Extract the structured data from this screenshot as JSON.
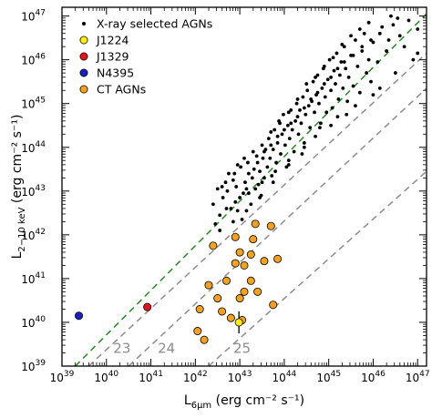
{
  "chart_data": {
    "type": "scatter",
    "xaxis": {
      "label_main": "L",
      "label_sub": "6μm",
      "label_unit": " (erg cm⁻² s⁻¹)",
      "log": true,
      "range": [
        39,
        47.2
      ]
    },
    "yaxis": {
      "label_main": "L",
      "label_sub": "2−10 keV",
      "label_unit": " (erg cm⁻² s⁻¹)",
      "log": true,
      "range": [
        39,
        47.2
      ]
    },
    "tick_labels": [
      {
        "base": "10",
        "exp": "39"
      },
      {
        "base": "10",
        "exp": "40"
      },
      {
        "base": "10",
        "exp": "41"
      },
      {
        "base": "10",
        "exp": "42"
      },
      {
        "base": "10",
        "exp": "43"
      },
      {
        "base": "10",
        "exp": "44"
      },
      {
        "base": "10",
        "exp": "45"
      },
      {
        "base": "10",
        "exp": "46"
      },
      {
        "base": "10",
        "exp": "47"
      }
    ],
    "legend": {
      "position": "top-left",
      "entries": [
        {
          "label": "X-ray selected AGNs",
          "color": "#000000",
          "marker": "small-dot"
        },
        {
          "label": "J1224",
          "color": "#ffee00",
          "marker": "circle"
        },
        {
          "label": "J1329",
          "color": "#e8131b",
          "marker": "circle"
        },
        {
          "label": "N4395",
          "color": "#1a20c2",
          "marker": "circle"
        },
        {
          "label": "CT AGNs",
          "color": "#f4a21c",
          "marker": "circle"
        }
      ]
    },
    "reference_lines": [
      {
        "name": "intrinsic-relation",
        "color": "#1f8a1f",
        "style": "dashed",
        "points": [
          [
            39.3,
            39.0
          ],
          [
            47.2,
            47.05
          ]
        ]
      },
      {
        "name": "nh-23",
        "label": "23",
        "color": "#8c8c8c",
        "style": "dashed",
        "points": [
          [
            39.6,
            39.0
          ],
          [
            47.2,
            46.15
          ]
        ]
      },
      {
        "name": "nh-24",
        "label": "24",
        "color": "#8c8c8c",
        "style": "dashed",
        "points": [
          [
            40.5,
            39.0
          ],
          [
            47.2,
            45.35
          ]
        ]
      },
      {
        "name": "nh-25",
        "label": "25",
        "color": "#8c8c8c",
        "style": "dashed",
        "points": [
          [
            42.3,
            39.0
          ],
          [
            47.2,
            43.45
          ]
        ]
      }
    ],
    "nh_label_positions": [
      [
        40.35,
        39.3
      ],
      [
        41.35,
        39.3
      ],
      [
        43.05,
        39.3
      ]
    ],
    "series": [
      {
        "name": "X-ray selected AGNs",
        "color": "#000000",
        "marker": "small-dot",
        "points": [
          [
            42.45,
            42.25
          ],
          [
            42.55,
            42.45
          ],
          [
            42.62,
            42.85
          ],
          [
            42.72,
            43.0
          ],
          [
            42.8,
            42.6
          ],
          [
            42.85,
            43.25
          ],
          [
            42.92,
            43.1
          ],
          [
            42.95,
            42.55
          ],
          [
            43.0,
            42.85
          ],
          [
            43.05,
            42.35
          ],
          [
            43.08,
            42.95
          ],
          [
            43.12,
            43.2
          ],
          [
            43.15,
            43.05
          ],
          [
            43.2,
            43.4
          ],
          [
            43.25,
            42.7
          ],
          [
            43.28,
            43.3
          ],
          [
            43.32,
            43.5
          ],
          [
            43.35,
            43.05
          ],
          [
            43.4,
            43.65
          ],
          [
            43.42,
            43.15
          ],
          [
            43.45,
            43.45
          ],
          [
            43.48,
            42.9
          ],
          [
            43.52,
            43.75
          ],
          [
            43.55,
            43.3
          ],
          [
            43.58,
            43.95
          ],
          [
            43.62,
            43.55
          ],
          [
            43.65,
            44.2
          ],
          [
            43.68,
            43.75
          ],
          [
            43.72,
            43.35
          ],
          [
            43.75,
            43.95
          ],
          [
            43.78,
            44.4
          ],
          [
            43.82,
            43.65
          ],
          [
            43.85,
            44.1
          ],
          [
            43.88,
            44.6
          ],
          [
            43.92,
            43.85
          ],
          [
            43.95,
            44.3
          ],
          [
            43.98,
            44.75
          ],
          [
            44.02,
            44.05
          ],
          [
            44.05,
            43.55
          ],
          [
            44.08,
            44.5
          ],
          [
            44.12,
            44.2
          ],
          [
            44.15,
            44.85
          ],
          [
            44.18,
            44.4
          ],
          [
            44.22,
            43.9
          ],
          [
            44.25,
            44.6
          ],
          [
            44.28,
            45.0
          ],
          [
            44.32,
            44.3
          ],
          [
            44.35,
            44.85
          ],
          [
            44.38,
            44.55
          ],
          [
            44.42,
            45.15
          ],
          [
            44.45,
            44.1
          ],
          [
            44.48,
            44.75
          ],
          [
            44.52,
            45.3
          ],
          [
            44.55,
            44.95
          ],
          [
            44.58,
            44.45
          ],
          [
            44.62,
            45.05
          ],
          [
            44.65,
            45.5
          ],
          [
            44.68,
            44.8
          ],
          [
            44.72,
            45.2
          ],
          [
            44.75,
            45.65
          ],
          [
            44.78,
            45.0
          ],
          [
            44.82,
            44.55
          ],
          [
            44.85,
            45.35
          ],
          [
            44.88,
            45.8
          ],
          [
            44.92,
            45.15
          ],
          [
            44.95,
            44.8
          ],
          [
            44.98,
            45.55
          ],
          [
            45.02,
            46.0
          ],
          [
            45.05,
            45.3
          ],
          [
            45.08,
            44.9
          ],
          [
            45.12,
            45.75
          ],
          [
            45.15,
            45.45
          ],
          [
            45.18,
            46.15
          ],
          [
            45.22,
            45.1
          ],
          [
            45.25,
            45.65
          ],
          [
            45.28,
            45.95
          ],
          [
            45.32,
            45.35
          ],
          [
            45.35,
            46.3
          ],
          [
            45.38,
            45.8
          ],
          [
            45.42,
            45.05
          ],
          [
            45.45,
            45.6
          ],
          [
            45.5,
            46.1
          ],
          [
            45.55,
            45.4
          ],
          [
            45.6,
            46.45
          ],
          [
            45.65,
            45.85
          ],
          [
            45.7,
            45.25
          ],
          [
            45.75,
            46.2
          ],
          [
            45.8,
            46.6
          ],
          [
            45.85,
            45.7
          ],
          [
            45.9,
            46.0
          ],
          [
            45.95,
            45.5
          ],
          [
            46.0,
            46.4
          ],
          [
            46.1,
            45.95
          ],
          [
            46.2,
            46.75
          ],
          [
            46.3,
            46.2
          ],
          [
            46.45,
            46.8
          ],
          [
            46.6,
            46.55
          ],
          [
            46.8,
            46.9
          ],
          [
            46.15,
            45.35
          ],
          [
            45.4,
            44.75
          ],
          [
            45.05,
            44.5
          ],
          [
            44.7,
            44.25
          ],
          [
            44.4,
            43.85
          ],
          [
            44.1,
            43.7
          ],
          [
            43.8,
            43.45
          ],
          [
            43.5,
            43.2
          ],
          [
            43.2,
            42.95
          ],
          [
            42.9,
            42.75
          ],
          [
            42.7,
            42.6
          ],
          [
            42.6,
            43.1
          ],
          [
            42.75,
            43.4
          ],
          [
            42.95,
            43.6
          ],
          [
            43.1,
            43.75
          ],
          [
            43.3,
            43.9
          ],
          [
            43.5,
            44.05
          ],
          [
            43.7,
            44.35
          ],
          [
            43.9,
            44.55
          ],
          [
            44.1,
            44.8
          ],
          [
            44.3,
            45.1
          ],
          [
            44.5,
            45.45
          ],
          [
            44.7,
            45.6
          ],
          [
            44.9,
            45.85
          ],
          [
            45.1,
            46.05
          ],
          [
            45.3,
            46.35
          ],
          [
            45.5,
            46.55
          ],
          [
            45.7,
            46.7
          ],
          [
            45.9,
            46.85
          ],
          [
            46.4,
            47.0
          ],
          [
            46.7,
            46.3
          ],
          [
            46.9,
            46.0
          ],
          [
            47.0,
            46.15
          ],
          [
            46.5,
            45.7
          ],
          [
            46.0,
            45.2
          ],
          [
            45.6,
            44.95
          ],
          [
            45.2,
            44.7
          ],
          [
            44.8,
            44.45
          ],
          [
            44.45,
            44.0
          ],
          [
            44.1,
            43.6
          ],
          [
            43.75,
            43.2
          ],
          [
            43.45,
            42.85
          ],
          [
            43.15,
            42.55
          ],
          [
            42.85,
            42.3
          ],
          [
            42.55,
            42.1
          ],
          [
            42.4,
            42.7
          ],
          [
            42.5,
            43.05
          ],
          [
            42.68,
            43.2
          ],
          [
            42.88,
            43.4
          ],
          [
            43.02,
            43.55
          ],
          [
            43.18,
            43.65
          ],
          [
            43.38,
            43.8
          ],
          [
            43.55,
            43.9
          ],
          [
            43.7,
            44.05
          ],
          [
            43.85,
            44.25
          ],
          [
            44.0,
            44.4
          ],
          [
            44.15,
            44.55
          ],
          [
            44.3,
            44.7
          ],
          [
            44.45,
            44.9
          ],
          [
            44.6,
            45.1
          ],
          [
            44.75,
            45.25
          ],
          [
            44.9,
            45.45
          ],
          [
            45.05,
            45.6
          ],
          [
            45.2,
            45.8
          ],
          [
            45.35,
            45.95
          ],
          [
            45.55,
            46.1
          ],
          [
            45.75,
            46.3
          ],
          [
            45.95,
            46.45
          ],
          [
            46.15,
            46.6
          ],
          [
            46.35,
            46.45
          ],
          [
            46.55,
            46.95
          ],
          [
            47.0,
            46.7
          ]
        ]
      },
      {
        "name": "CT AGNs",
        "color": "#f4a21c",
        "marker": "circle",
        "points": [
          [
            43.35,
            42.25
          ],
          [
            43.7,
            42.2
          ],
          [
            42.9,
            41.95
          ],
          [
            43.3,
            41.9
          ],
          [
            43.0,
            41.6
          ],
          [
            43.25,
            41.55
          ],
          [
            42.4,
            41.75
          ],
          [
            42.9,
            41.35
          ],
          [
            43.1,
            41.3
          ],
          [
            43.55,
            41.4
          ],
          [
            42.7,
            40.95
          ],
          [
            43.25,
            40.95
          ],
          [
            43.1,
            40.7
          ],
          [
            43.75,
            40.4
          ],
          [
            42.3,
            40.85
          ],
          [
            42.5,
            40.55
          ],
          [
            43.4,
            40.7
          ],
          [
            42.1,
            40.3
          ],
          [
            43.0,
            40.55
          ],
          [
            42.8,
            40.1
          ],
          [
            42.6,
            40.25
          ],
          [
            43.05,
            40.05
          ],
          [
            42.05,
            39.8
          ],
          [
            42.2,
            39.6
          ],
          [
            43.85,
            41.45
          ]
        ]
      },
      {
        "name": "J1224",
        "color": "#ffee00",
        "marker": "circle",
        "points": [
          [
            42.98,
            40.0
          ]
        ],
        "error": [
          39.75,
          40.25
        ]
      },
      {
        "name": "J1329",
        "color": "#e8131b",
        "marker": "circle",
        "points": [
          [
            40.92,
            40.35
          ]
        ]
      },
      {
        "name": "N4395",
        "color": "#1a20c2",
        "marker": "circle",
        "points": [
          [
            39.38,
            40.15
          ]
        ]
      }
    ]
  }
}
